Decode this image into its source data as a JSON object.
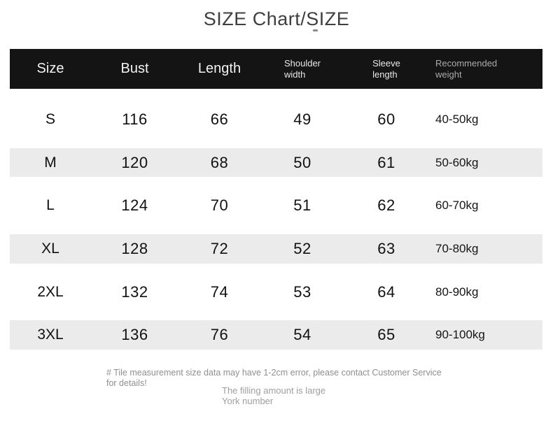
{
  "title": "SIZE Chart/SIZE",
  "chart_data": {
    "type": "table",
    "title": "SIZE Chart/SIZE",
    "columns": [
      "Size",
      "Bust",
      "Length",
      "Shoulder width",
      "Sleeve length",
      "Recommended weight"
    ],
    "rows": [
      [
        "S",
        "116",
        "66",
        "49",
        "60",
        "40-50kg"
      ],
      [
        "M",
        "120",
        "68",
        "50",
        "61",
        "50-60kg"
      ],
      [
        "L",
        "124",
        "70",
        "51",
        "62",
        "60-70kg"
      ],
      [
        "XL",
        "128",
        "72",
        "52",
        "63",
        "70-80kg"
      ],
      [
        "2XL",
        "132",
        "74",
        "53",
        "64",
        "80-90kg"
      ],
      [
        "3XL",
        "136",
        "76",
        "54",
        "65",
        "90-100kg"
      ]
    ],
    "layout_hints": {
      "striped_rows": [
        "M",
        "XL",
        "3XL"
      ],
      "header_background": "black"
    }
  },
  "table": {
    "headers": [
      [
        "Size"
      ],
      [
        "Bust"
      ],
      [
        "Length"
      ],
      [
        "Shoulder",
        "width"
      ],
      [
        "Sleeve",
        "length"
      ],
      [
        "Recommended",
        "weight"
      ]
    ],
    "column_names": [
      "size",
      "bust",
      "length",
      "shoulder-width",
      "sleeve-length",
      "recommended-weight"
    ]
  },
  "footer": {
    "note": "# Tile measurement size data may have 1-2cm error, please contact Customer Service for details!",
    "filling_line1": "The filling amount is large",
    "filling_line2": "York number"
  },
  "colors": {
    "header-bg": "#141414",
    "header-text": "#f2f2f2",
    "header-subtext": "#e9e9e9",
    "header-muted": "#ababab",
    "stripe": "#ebebeb",
    "body-text": "#111111",
    "footer-text": "#8f8f8f",
    "title-text": "#3f3f3f"
  }
}
